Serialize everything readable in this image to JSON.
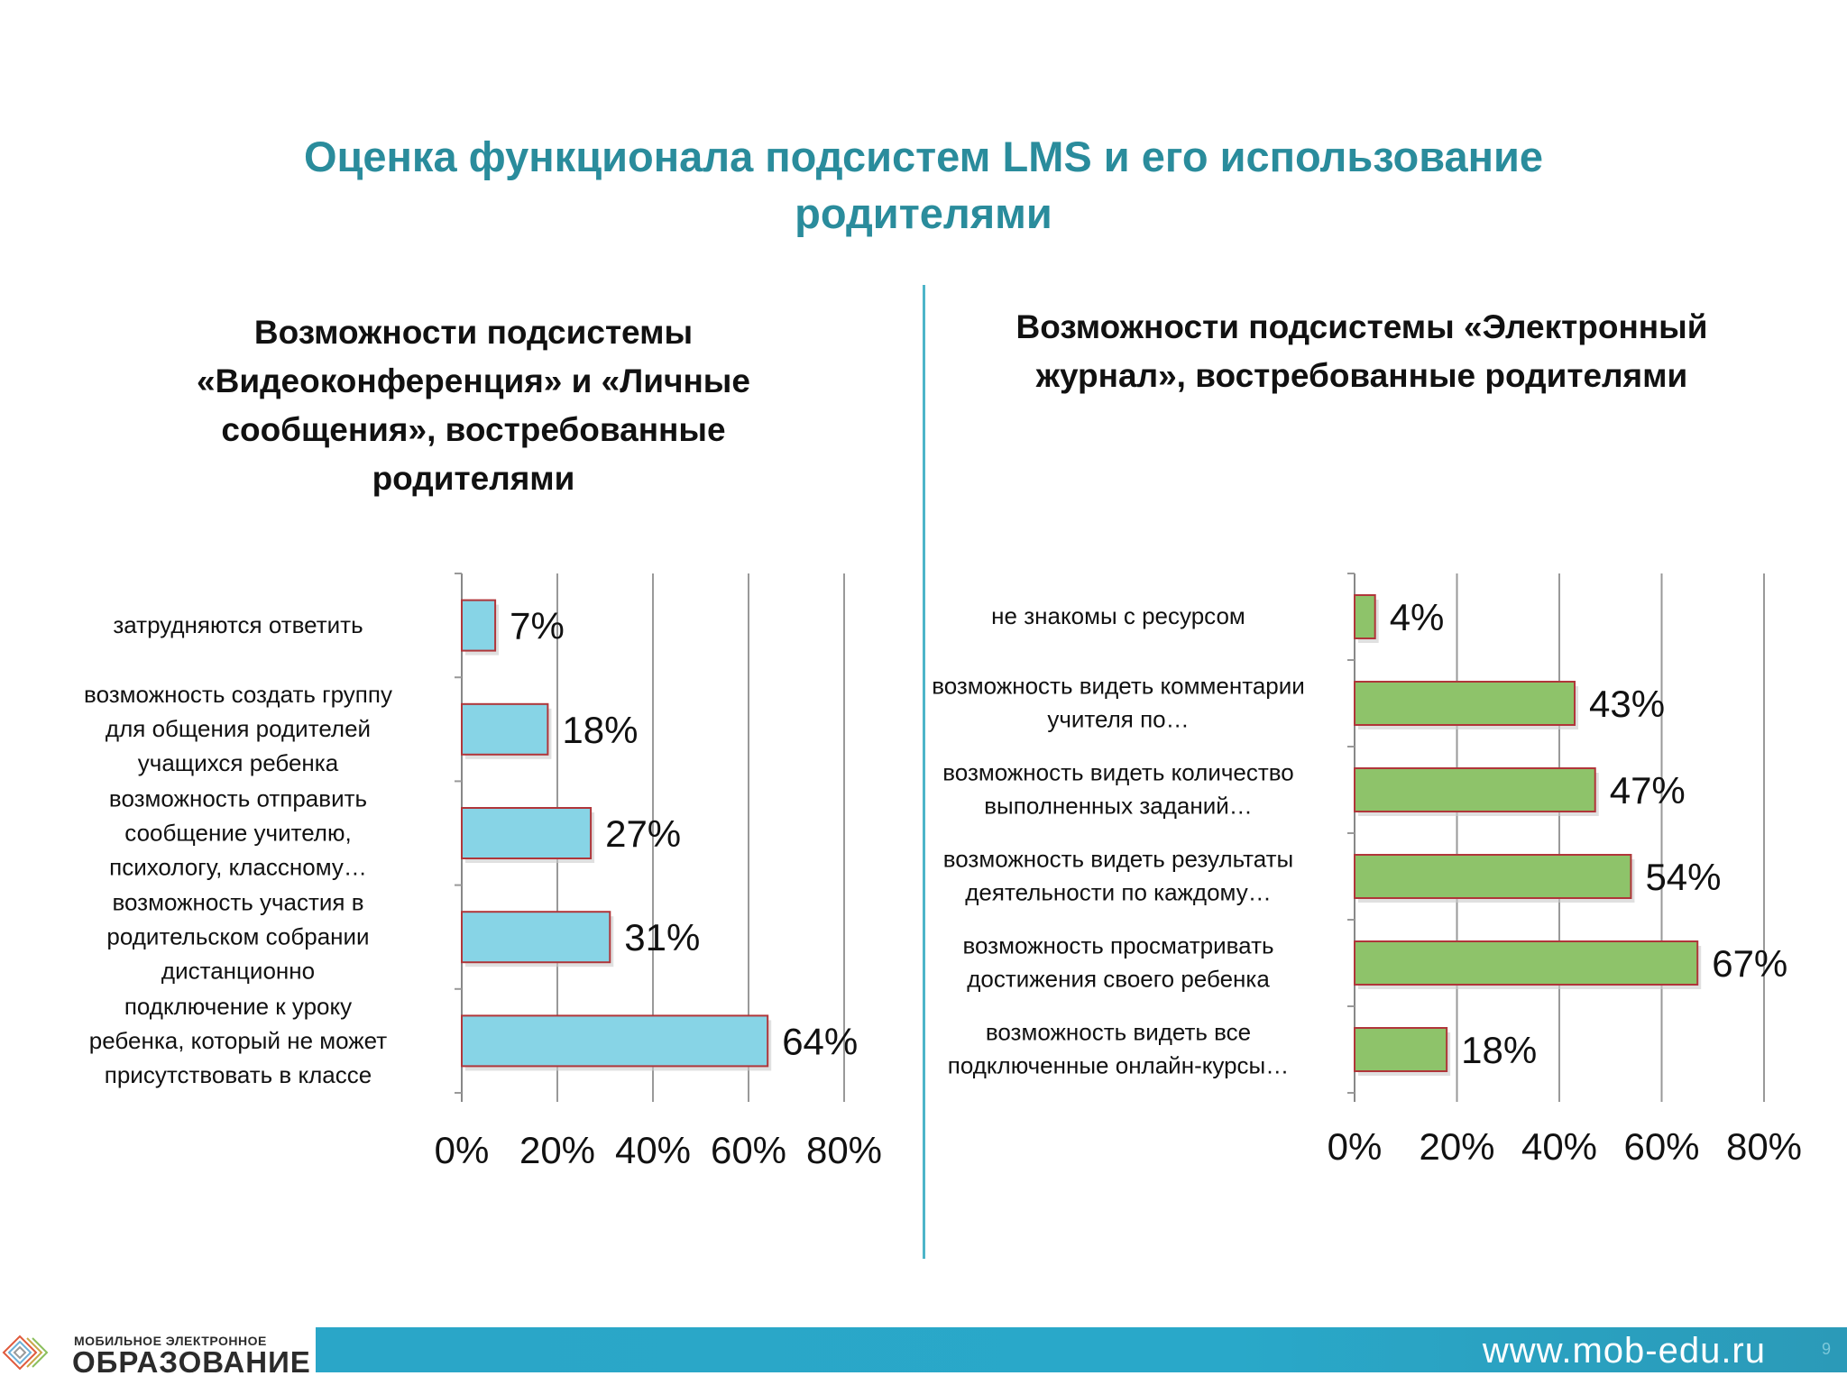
{
  "slide": {
    "title": "Оценка функционала подсистем LMS и его использование родителями",
    "page_number": "9"
  },
  "footer": {
    "url": "www.mob-edu.ru",
    "logo_line1": "МОБИЛЬНОЕ ЭЛЕКТРОННОЕ",
    "logo_line2": "ОБРАЗОВАНИЕ"
  },
  "colors": {
    "title": "#2a8c9c",
    "left_bar": "#87d4e6",
    "right_bar": "#8ec36a",
    "bar_border": "#b0363a",
    "divider": "#4db5c9",
    "footer_band": "#2aa6c8"
  },
  "chart_data": [
    {
      "type": "bar",
      "orientation": "horizontal",
      "title": "Возможности подсистемы «Видеоконференция» и «Личные сообщения», востребованные родителями",
      "categories": [
        "затрудняются ответить",
        "возможность  создать группу для общения родителей учащихся ребенка",
        "возможность отправить сообщение учителю, психологу, классному…",
        "возможность участия в родительском собрании дистанционно",
        "подключение к уроку ребенка, который не может присутствовать в классе"
      ],
      "values": [
        7,
        18,
        27,
        31,
        64
      ],
      "data_labels": [
        "7%",
        "18%",
        "27%",
        "31%",
        "64%"
      ],
      "xlim": [
        0,
        80
      ],
      "ticks": [
        0,
        20,
        40,
        60,
        80
      ],
      "tick_labels": [
        "0%",
        "20%",
        "40%",
        "60%",
        "80%"
      ],
      "grid": true,
      "legend": "none"
    },
    {
      "type": "bar",
      "orientation": "horizontal",
      "title": "Возможности подсистемы «Электронный журнал», востребованные родителями",
      "categories": [
        "не знакомы с ресурсом",
        "возможность видеть комментарии учителя по…",
        "возможность видеть количество выполненных заданий…",
        "возможность видеть результаты деятельности по каждому…",
        "возможность просматривать достижения своего ребенка",
        "возможность видеть все подключенные онлайн-курсы…"
      ],
      "values": [
        4,
        43,
        47,
        54,
        67,
        18
      ],
      "data_labels": [
        "4%",
        "43%",
        "47%",
        "54%",
        "67%",
        "18%"
      ],
      "xlim": [
        0,
        80
      ],
      "ticks": [
        0,
        20,
        40,
        60,
        80
      ],
      "tick_labels": [
        "0%",
        "20%",
        "40%",
        "60%",
        "80%"
      ],
      "grid": true,
      "legend": "none"
    }
  ]
}
